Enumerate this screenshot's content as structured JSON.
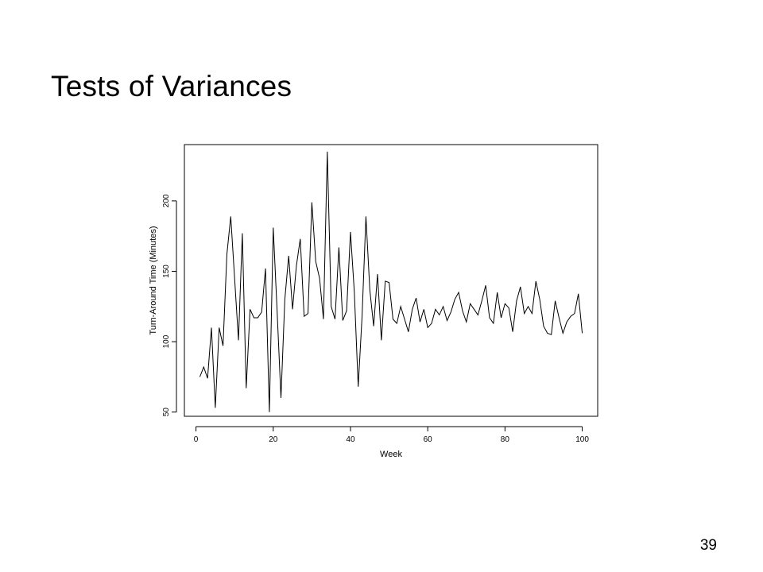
{
  "slide": {
    "title": "Tests of Variances",
    "page_number": "39"
  },
  "chart_data": {
    "type": "line",
    "title": "",
    "xlabel": "Week",
    "ylabel": "Turn-Around Time (Minutes)",
    "xlim": [
      -3,
      104
    ],
    "ylim": [
      47,
      240
    ],
    "xticks": [
      0,
      20,
      40,
      60,
      80,
      100
    ],
    "yticks": [
      50,
      100,
      150,
      200
    ],
    "grid": false,
    "series": [
      {
        "values": [
          [
            1,
            75
          ],
          [
            2,
            82
          ],
          [
            3,
            74
          ],
          [
            4,
            110
          ],
          [
            5,
            53
          ],
          [
            6,
            110
          ],
          [
            7,
            97
          ],
          [
            8,
            162
          ],
          [
            9,
            189
          ],
          [
            10,
            145
          ],
          [
            11,
            101
          ],
          [
            12,
            177
          ],
          [
            13,
            67
          ],
          [
            14,
            123
          ],
          [
            15,
            117
          ],
          [
            16,
            117
          ],
          [
            17,
            121
          ],
          [
            18,
            152
          ],
          [
            19,
            50
          ],
          [
            20,
            181
          ],
          [
            21,
            122
          ],
          [
            22,
            60
          ],
          [
            23,
            130
          ],
          [
            24,
            161
          ],
          [
            25,
            123
          ],
          [
            26,
            154
          ],
          [
            27,
            173
          ],
          [
            28,
            118
          ],
          [
            29,
            120
          ],
          [
            30,
            199
          ],
          [
            31,
            157
          ],
          [
            32,
            145
          ],
          [
            33,
            116
          ],
          [
            34,
            235
          ],
          [
            35,
            125
          ],
          [
            36,
            116
          ],
          [
            37,
            167
          ],
          [
            38,
            115
          ],
          [
            39,
            122
          ],
          [
            40,
            178
          ],
          [
            41,
            135
          ],
          [
            42,
            68
          ],
          [
            43,
            118
          ],
          [
            44,
            189
          ],
          [
            45,
            137
          ],
          [
            46,
            111
          ],
          [
            47,
            148
          ],
          [
            48,
            101
          ],
          [
            49,
            143
          ],
          [
            50,
            142
          ],
          [
            51,
            116
          ],
          [
            52,
            113
          ],
          [
            53,
            125
          ],
          [
            54,
            116
          ],
          [
            55,
            107
          ],
          [
            56,
            123
          ],
          [
            57,
            131
          ],
          [
            58,
            114
          ],
          [
            59,
            123
          ],
          [
            60,
            110
          ],
          [
            61,
            113
          ],
          [
            62,
            123
          ],
          [
            63,
            119
          ],
          [
            64,
            125
          ],
          [
            65,
            115
          ],
          [
            66,
            121
          ],
          [
            67,
            130
          ],
          [
            68,
            135
          ],
          [
            69,
            122
          ],
          [
            70,
            114
          ],
          [
            71,
            127
          ],
          [
            72,
            123
          ],
          [
            73,
            119
          ],
          [
            74,
            129
          ],
          [
            75,
            140
          ],
          [
            76,
            117
          ],
          [
            77,
            113
          ],
          [
            78,
            135
          ],
          [
            79,
            117
          ],
          [
            80,
            127
          ],
          [
            81,
            124
          ],
          [
            82,
            107
          ],
          [
            83,
            129
          ],
          [
            84,
            139
          ],
          [
            85,
            120
          ],
          [
            86,
            125
          ],
          [
            87,
            120
          ],
          [
            88,
            143
          ],
          [
            89,
            130
          ],
          [
            90,
            111
          ],
          [
            91,
            106
          ],
          [
            92,
            105
          ],
          [
            93,
            129
          ],
          [
            94,
            117
          ],
          [
            95,
            106
          ],
          [
            96,
            114
          ],
          [
            97,
            118
          ],
          [
            98,
            120
          ],
          [
            99,
            134
          ],
          [
            100,
            106
          ]
        ]
      }
    ]
  }
}
